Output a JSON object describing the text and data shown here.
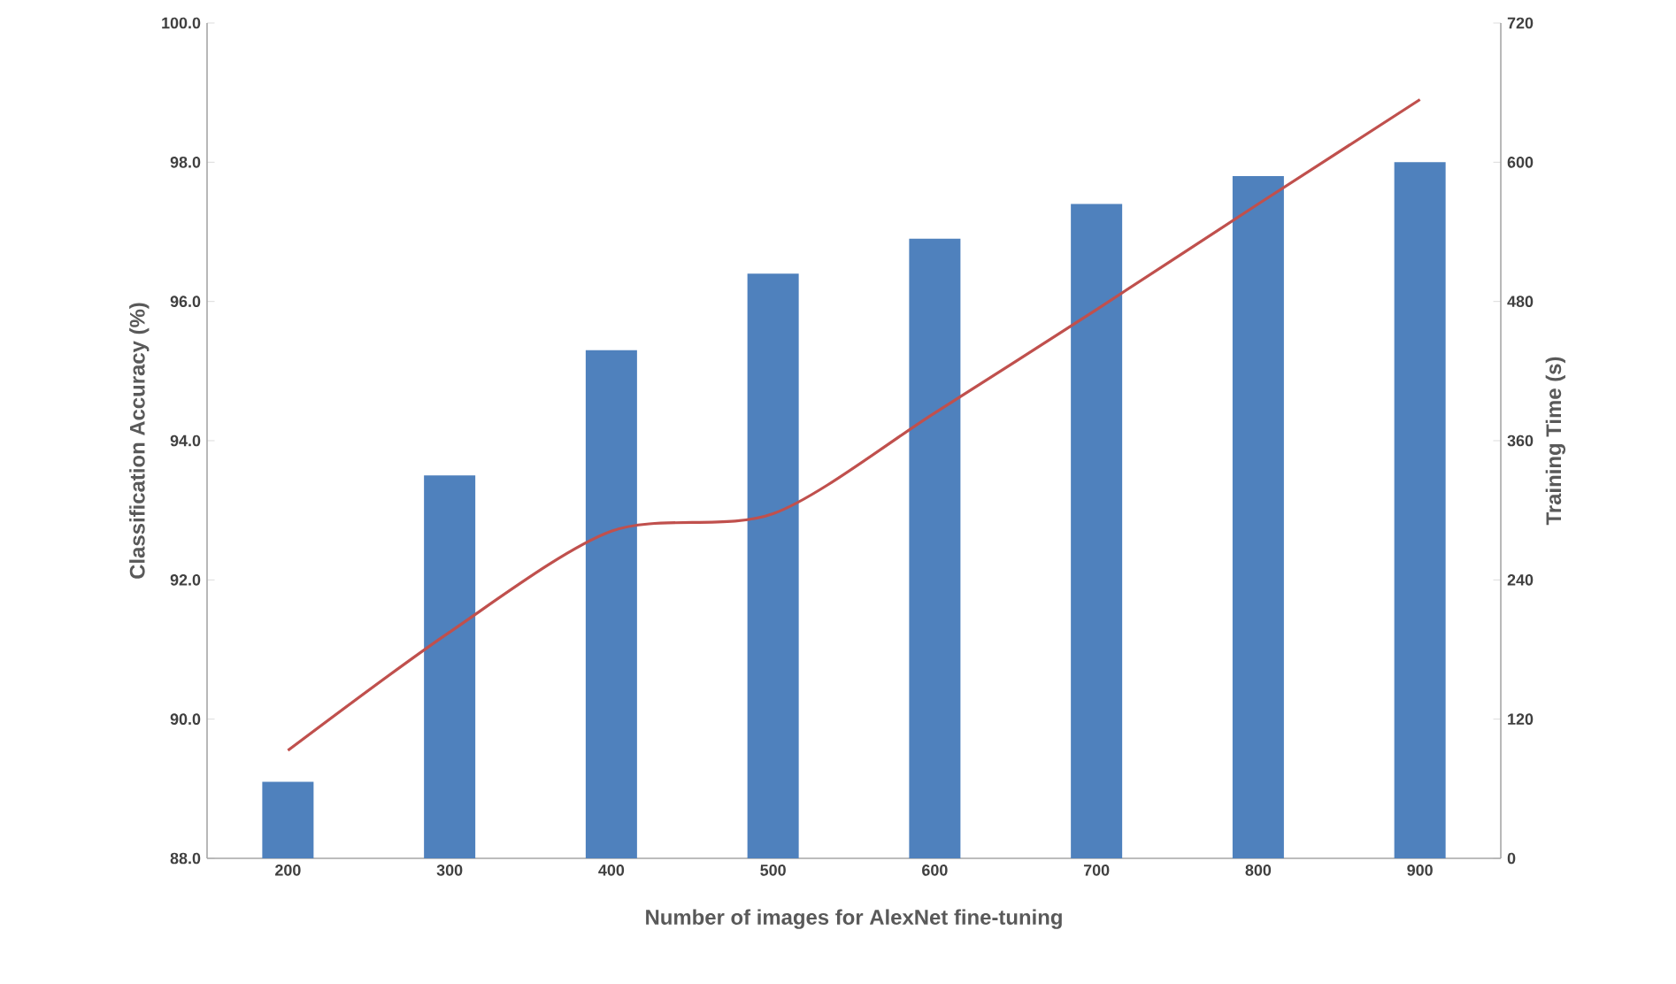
{
  "chart_data": {
    "type": "bar",
    "xlabel": "Number of images for AlexNet fine-tuning",
    "ylabel": "Classification Accuracy (%)",
    "y2label": "Training Time (s)",
    "categories": [
      "200",
      "300",
      "400",
      "500",
      "600",
      "700",
      "800",
      "900"
    ],
    "series": [
      {
        "color": "#4f81bd",
        "values": [
          89.1,
          93.5,
          95.3,
          96.4,
          96.9,
          97.4,
          97.8,
          98.0
        ]
      },
      {
        "type": "line",
        "axis": "y2",
        "color": "#c0504d",
        "values": [
          93,
          195,
          282,
          297,
          384,
          473,
          564,
          654
        ]
      }
    ],
    "ylim": [
      88,
      100
    ],
    "yticks": [
      {
        "value": 88,
        "label": "88.0"
      },
      {
        "value": 90,
        "label": "90.0"
      },
      {
        "value": 92,
        "label": "92.0"
      },
      {
        "value": 94,
        "label": "94.0"
      },
      {
        "value": 96,
        "label": "96.0"
      },
      {
        "value": 98,
        "label": "98.0"
      },
      {
        "value": 100,
        "label": "100.0"
      }
    ],
    "y2lim": [
      0,
      720
    ],
    "y2ticks": [
      0,
      120,
      240,
      360,
      480,
      600,
      720
    ]
  }
}
